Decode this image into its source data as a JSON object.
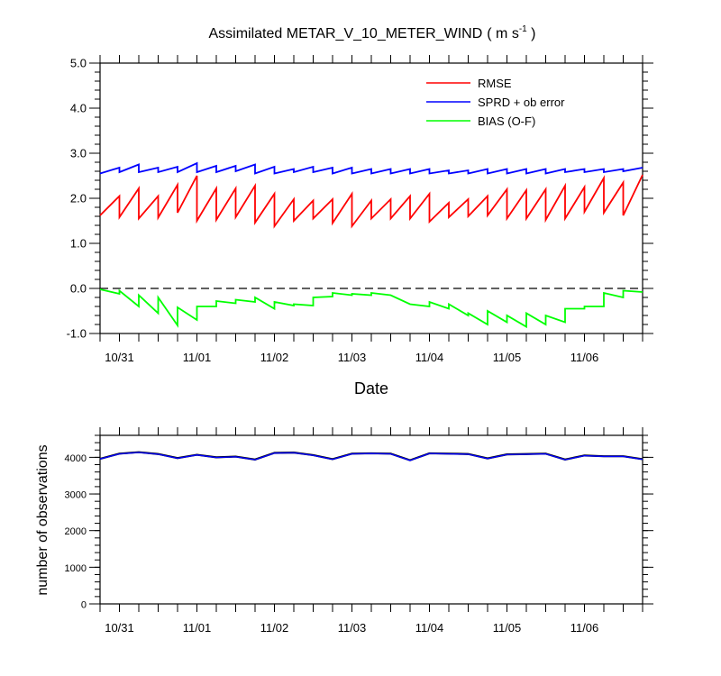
{
  "chart_data": [
    {
      "type": "line",
      "title": "Assimilated METAR_V_10_METER_WIND",
      "title_units_prefix": "( m s",
      "title_units_exp": "-1",
      "title_units_suffix": " )",
      "xlabel": "Date",
      "ylabel": "",
      "x_tick_labels": [
        "10/31",
        "11/01",
        "11/02",
        "11/03",
        "11/04",
        "11/05",
        "11/06"
      ],
      "x_tick_positions": [
        1,
        5,
        9,
        13,
        17,
        21,
        25
      ],
      "xlim": [
        0,
        28
      ],
      "ylim": [
        -1.0,
        5.0
      ],
      "y_ticks": [
        -1.0,
        0.0,
        1.0,
        2.0,
        3.0,
        4.0,
        5.0
      ],
      "y_tick_labels": [
        "-1.0",
        "0.0",
        "1.0",
        "2.0",
        "3.0",
        "4.0",
        "5.0"
      ],
      "zero_line": true,
      "legend_position": "top-right",
      "series": [
        {
          "name": "RMSE",
          "color": "#ff0000",
          "sawtooth": true,
          "prior": [
            1.62,
            1.58,
            1.55,
            1.57,
            1.68,
            1.5,
            1.52,
            1.58,
            1.46,
            1.38,
            1.5,
            1.55,
            1.45,
            1.38,
            1.55,
            1.55,
            1.55,
            1.48,
            1.58,
            1.6,
            1.62,
            1.55,
            1.55,
            1.52,
            1.55,
            1.7,
            1.68,
            1.62
          ],
          "posterior": [
            2.05,
            2.22,
            2.05,
            2.3,
            2.5,
            2.22,
            2.22,
            2.28,
            2.1,
            1.98,
            1.95,
            1.98,
            2.1,
            1.95,
            1.98,
            2.05,
            2.1,
            1.9,
            1.98,
            2.05,
            2.2,
            2.18,
            2.2,
            2.28,
            2.25,
            2.45,
            2.35,
            2.52
          ]
        },
        {
          "name": "SPRD + ob error",
          "color": "#0000ff",
          "sawtooth": true,
          "prior": [
            2.55,
            2.58,
            2.58,
            2.58,
            2.58,
            2.58,
            2.58,
            2.6,
            2.55,
            2.55,
            2.58,
            2.58,
            2.55,
            2.55,
            2.55,
            2.55,
            2.55,
            2.55,
            2.55,
            2.55,
            2.55,
            2.55,
            2.55,
            2.55,
            2.58,
            2.58,
            2.58,
            2.6
          ],
          "posterior": [
            2.68,
            2.75,
            2.68,
            2.7,
            2.78,
            2.72,
            2.72,
            2.75,
            2.7,
            2.65,
            2.7,
            2.68,
            2.68,
            2.65,
            2.65,
            2.65,
            2.65,
            2.62,
            2.62,
            2.65,
            2.65,
            2.65,
            2.65,
            2.65,
            2.65,
            2.65,
            2.65,
            2.68
          ]
        },
        {
          "name": "BIAS (O-F)",
          "color": "#00ff00",
          "sawtooth": true,
          "prior": [
            -0.02,
            -0.05,
            -0.15,
            -0.2,
            -0.42,
            -0.4,
            -0.28,
            -0.25,
            -0.2,
            -0.3,
            -0.35,
            -0.2,
            -0.1,
            -0.12,
            -0.1,
            -0.15,
            -0.35,
            -0.3,
            -0.35,
            -0.55,
            -0.5,
            -0.6,
            -0.55,
            -0.6,
            -0.45,
            -0.4,
            -0.1,
            -0.05
          ],
          "posterior": [
            -0.12,
            -0.4,
            -0.55,
            -0.82,
            -0.7,
            -0.4,
            -0.33,
            -0.3,
            -0.45,
            -0.38,
            -0.38,
            -0.18,
            -0.15,
            -0.15,
            -0.15,
            -0.35,
            -0.4,
            -0.45,
            -0.6,
            -0.8,
            -0.75,
            -0.85,
            -0.8,
            -0.75,
            -0.45,
            -0.4,
            -0.2,
            -0.08
          ]
        }
      ]
    },
    {
      "type": "line",
      "title": "",
      "xlabel": "",
      "ylabel": "number of observations",
      "x_tick_labels": [
        "10/31",
        "11/01",
        "11/02",
        "11/03",
        "11/04",
        "11/05",
        "11/06"
      ],
      "x_tick_positions": [
        1,
        5,
        9,
        13,
        17,
        21,
        25
      ],
      "xlim": [
        0,
        28
      ],
      "ylim": [
        0,
        4600
      ],
      "y_ticks": [
        0,
        1000,
        2000,
        3000,
        4000
      ],
      "y_tick_labels": [
        "0",
        "1000",
        "2000",
        "3000",
        "4000"
      ],
      "x": [
        0,
        1,
        2,
        3,
        4,
        5,
        6,
        7,
        8,
        9,
        10,
        11,
        12,
        13,
        14,
        15,
        16,
        17,
        18,
        19,
        20,
        21,
        22,
        23,
        24,
        25,
        26,
        27,
        28
      ],
      "series": [
        {
          "color": "#000000",
          "values": [
            3960,
            4100,
            4140,
            4090,
            3980,
            4070,
            4000,
            4020,
            3940,
            4120,
            4130,
            4060,
            3950,
            4100,
            4110,
            4100,
            3920,
            4110,
            4100,
            4090,
            3970,
            4080,
            4090,
            4100,
            3940,
            4050,
            4030,
            4030,
            3950
          ]
        },
        {
          "color": "#0000ff",
          "values": [
            3955,
            4095,
            4135,
            4085,
            3975,
            4065,
            3995,
            4015,
            3935,
            4115,
            4125,
            4055,
            3945,
            4095,
            4105,
            4095,
            3915,
            4105,
            4095,
            4085,
            3965,
            4075,
            4085,
            4095,
            3935,
            4045,
            4025,
            4025,
            3945
          ]
        }
      ]
    }
  ]
}
